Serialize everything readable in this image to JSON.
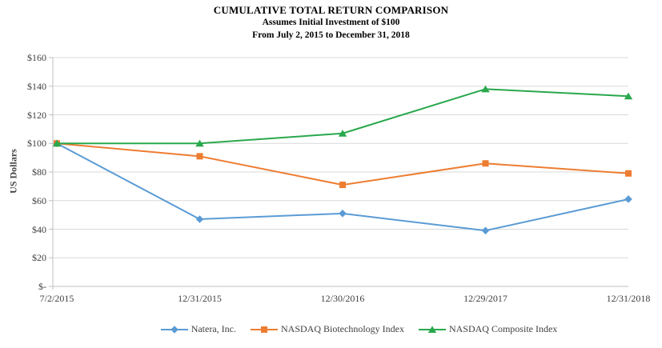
{
  "chart_data": {
    "type": "line",
    "title": "CUMULATIVE TOTAL RETURN COMPARISON",
    "subtitle_lines": [
      "Assumes Initial Investment of $100",
      "From July 2, 2015 to December 31, 2018"
    ],
    "ylabel": "US Dollars",
    "xlabel": "",
    "categories": [
      "7/2/2015",
      "12/31/2015",
      "12/30/2016",
      "12/29/2017",
      "12/31/2018"
    ],
    "series": [
      {
        "name": "Natera, Inc.",
        "marker": "diamond",
        "color": "#5B9BD5",
        "values": [
          100,
          47,
          51,
          39,
          61
        ]
      },
      {
        "name": "NASDAQ Biotechnology Index",
        "marker": "square",
        "color": "#ED7D31",
        "values": [
          100,
          91,
          71,
          86,
          79
        ]
      },
      {
        "name": "NASDAQ Composite Index",
        "marker": "triangle",
        "color": "#29A84D",
        "values": [
          100,
          100,
          107,
          138,
          133
        ]
      }
    ],
    "ylim": [
      0,
      160
    ],
    "ytick_step": 20,
    "ytick_labels_top_down": [
      "$160",
      "$140",
      "$120",
      "$100",
      "$80",
      "$60",
      "$40",
      "$20",
      "$-"
    ],
    "grid": true,
    "legend_position": "bottom",
    "colors": {
      "gridline": "#D9D9D9",
      "axis": "#BFBFBF",
      "axis_text": "#404040",
      "title_text": "#000000"
    }
  }
}
